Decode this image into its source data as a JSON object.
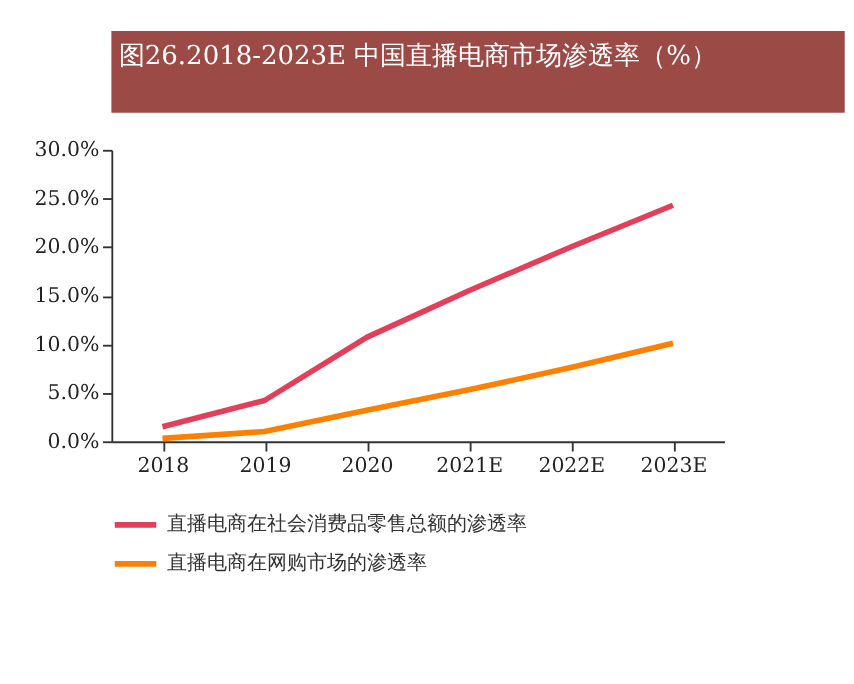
{
  "chart_data": {
    "type": "line",
    "title": "图26.2018-2023E 中国直播电商市场渗透率（%）",
    "categories": [
      "2018",
      "2019",
      "2020",
      "2021E",
      "2022E",
      "2023E"
    ],
    "series": [
      {
        "name": "直播电商在社会消费品零售总额的渗透率",
        "color": "#e2405a",
        "values": [
          1.5,
          4.2,
          10.7,
          15.5,
          20.0,
          24.3
        ]
      },
      {
        "name": "直播电商在网购市场的渗透率",
        "color": "#ff8000",
        "values": [
          0.3,
          1.0,
          3.2,
          5.3,
          7.6,
          10.1
        ]
      }
    ],
    "ylim": [
      0,
      30
    ],
    "yticks": [
      {
        "value": 0,
        "label": "0.0%"
      },
      {
        "value": 5,
        "label": "5.0%"
      },
      {
        "value": 10,
        "label": "10.0%"
      },
      {
        "value": 15,
        "label": "15.0%"
      },
      {
        "value": 20,
        "label": "20.0%"
      },
      {
        "value": 25,
        "label": "25.0%"
      },
      {
        "value": 30,
        "label": "30.0%"
      }
    ],
    "grid": false,
    "legend": "bottom",
    "marker": "none",
    "line_style": "solid"
  }
}
